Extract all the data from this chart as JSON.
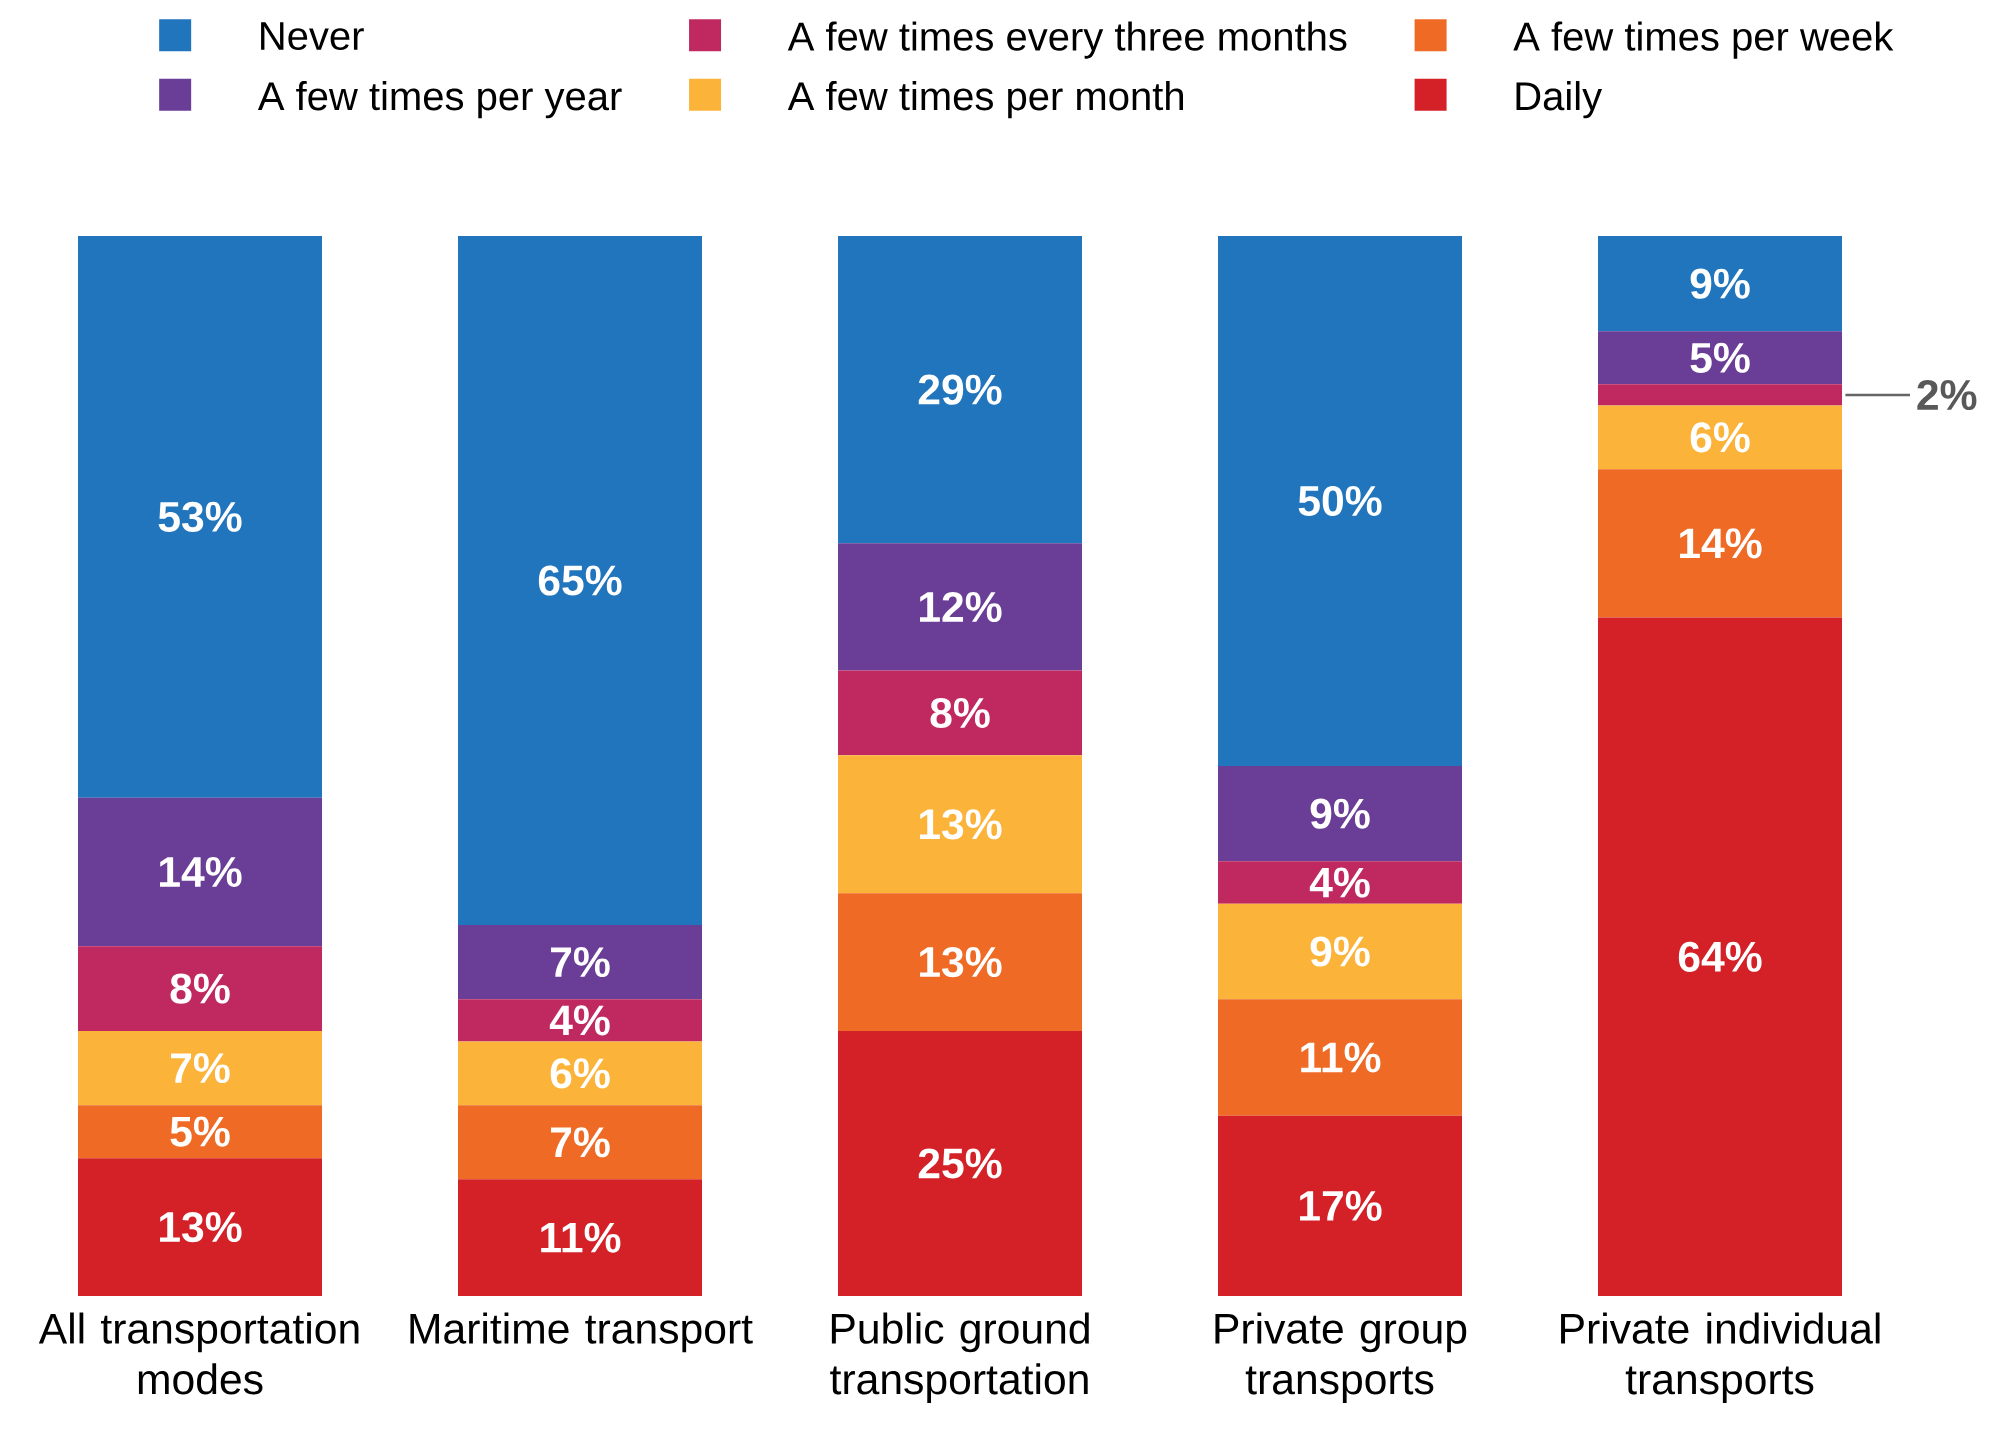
{
  "chart_data": {
    "type": "bar",
    "stacked": true,
    "legend": "top",
    "categories": [
      "All transportation modes",
      "Maritime transport",
      "Public ground transportation",
      "Private group transports",
      "Private individual transports"
    ],
    "series": [
      {
        "name": "Daily",
        "color": "#d42128",
        "values": [
          13,
          11,
          25,
          17,
          64
        ],
        "value_labels": [
          "13%",
          "11%",
          "25%",
          "17%",
          "64%"
        ]
      },
      {
        "name": "A few times per week",
        "color": "#ee6a25",
        "values": [
          5,
          7,
          13,
          11,
          14
        ],
        "value_labels": [
          "5%",
          "7%",
          "13%",
          "11%",
          "14%"
        ]
      },
      {
        "name": "A few times per month",
        "color": "#fbb33a",
        "values": [
          7,
          6,
          13,
          9,
          6
        ],
        "value_labels": [
          "7%",
          "6%",
          "13%",
          "9%",
          "6%"
        ]
      },
      {
        "name": "A few times every three months",
        "color": "#c0295f",
        "values": [
          8,
          4,
          8,
          4,
          2
        ],
        "value_labels": [
          "8%",
          "4%",
          "8%",
          "4%",
          "2%"
        ]
      },
      {
        "name": "A few times per year",
        "color": "#6a3d96",
        "values": [
          14,
          7,
          12,
          9,
          5
        ],
        "value_labels": [
          "14%",
          "7%",
          "12%",
          "9%",
          "5%"
        ]
      },
      {
        "name": "Never",
        "color": "#2175bc",
        "values": [
          53,
          65,
          29,
          50,
          9
        ],
        "value_labels": [
          "53%",
          "65%",
          "29%",
          "50%",
          "9%"
        ]
      }
    ]
  }
}
